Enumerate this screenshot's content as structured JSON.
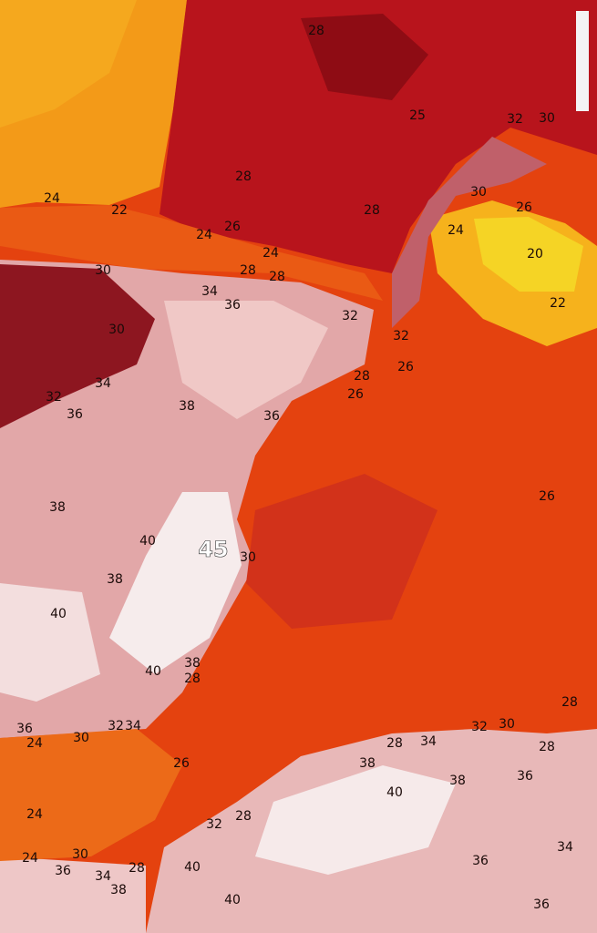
{
  "labels": [
    28,
    25,
    32,
    30,
    28,
    24,
    22,
    30,
    26,
    28,
    24,
    26,
    24,
    20,
    24,
    30,
    28,
    28,
    34,
    36,
    22,
    32,
    30,
    32,
    26,
    28,
    34,
    26,
    32,
    38,
    36,
    36,
    26,
    38,
    40,
    45,
    30,
    38,
    40,
    38,
    40,
    28,
    28,
    36,
    30,
    32,
    34,
    24,
    32,
    30,
    28,
    34,
    28,
    26,
    38,
    36,
    38,
    40,
    24,
    28,
    32,
    34,
    24,
    30,
    36,
    36,
    34,
    28,
    40,
    38,
    36,
    40
  ]
}
